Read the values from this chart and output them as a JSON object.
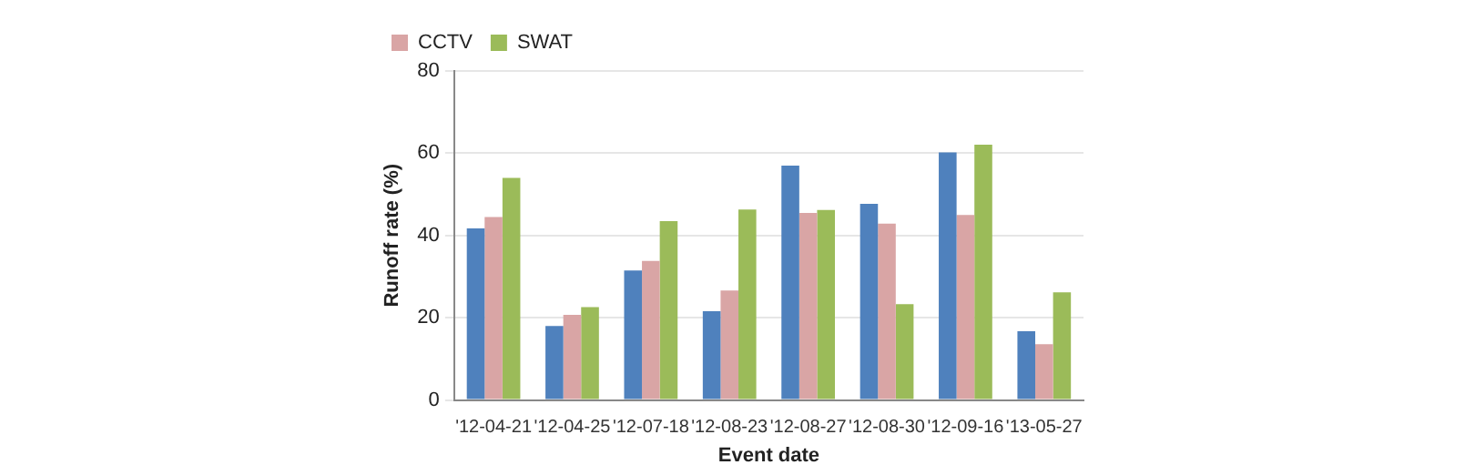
{
  "chart_data": {
    "type": "bar",
    "xlabel": "Event date",
    "ylabel": "Runoff rate (%)",
    "categories": [
      "'12-04-21",
      "'12-04-25",
      "'12-07-18",
      "'12-08-23",
      "'12-08-27",
      "'12-08-30",
      "'12-09-16",
      "'13-05-27"
    ],
    "series": [
      {
        "color": "#4f81bd",
        "values": [
          41.7,
          18,
          31.5,
          21.6,
          57,
          47.7,
          60.2,
          16.7
        ]
      },
      {
        "name": "CCTV",
        "color": "#d9a5a5",
        "values": [
          44.5,
          20.7,
          33.8,
          26.6,
          45.5,
          42.9,
          45,
          13.6
        ]
      },
      {
        "name": "SWAT",
        "color": "#9bbb59",
        "values": [
          54,
          22.6,
          43.5,
          46.3,
          46.2,
          23.3,
          62.1,
          26.2
        ]
      }
    ],
    "ylim": [
      0,
      80
    ],
    "yticks": [
      0,
      20,
      40,
      60,
      80
    ],
    "grid": "y",
    "legend": "top left"
  }
}
